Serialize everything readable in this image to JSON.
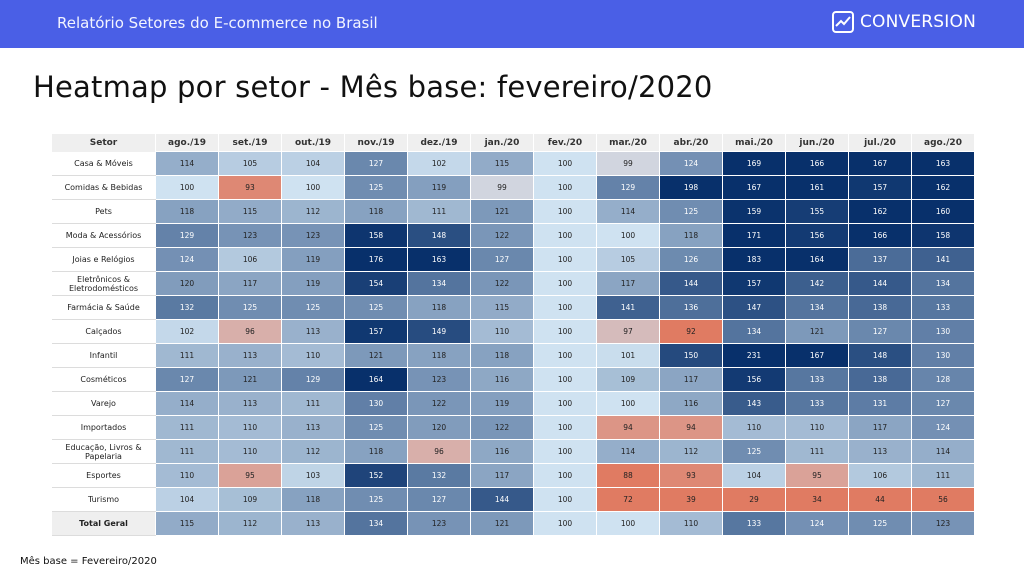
{
  "header": {
    "report_title": "Relatório Setores do E-commerce no Brasil",
    "brand_name": "CONVERSION"
  },
  "page_title": "Heatmap por setor - Mês base: fevereiro/2020",
  "footnote": "Mês base = Fevereiro/2020",
  "colors": {
    "header_bar": "#4a5fe6",
    "low": "#e07b62",
    "base": "#cfe2f1",
    "high": "#08306b"
  },
  "chart_data": {
    "type": "heatmap",
    "title": "Heatmap por setor - Mês base: fevereiro/2020",
    "row_header": "Setor",
    "columns": [
      "ago./19",
      "set./19",
      "out./19",
      "nov./19",
      "dez./19",
      "jan./20",
      "fev./20",
      "mar./20",
      "abr./20",
      "mai./20",
      "jun./20",
      "jul./20",
      "ago./20"
    ],
    "rows": [
      {
        "label": "Casa & Móveis",
        "values": [
          114,
          105,
          104,
          127,
          102,
          115,
          100,
          99,
          124,
          169,
          166,
          167,
          163
        ]
      },
      {
        "label": "Comidas & Bebidas",
        "values": [
          100,
          93,
          100,
          125,
          119,
          99,
          100,
          129,
          198,
          167,
          161,
          157,
          162
        ]
      },
      {
        "label": "Pets",
        "values": [
          118,
          115,
          112,
          118,
          111,
          121,
          100,
          114,
          125,
          159,
          155,
          162,
          160
        ]
      },
      {
        "label": "Moda & Acessórios",
        "values": [
          129,
          123,
          123,
          158,
          148,
          122,
          100,
          100,
          118,
          171,
          156,
          166,
          158
        ]
      },
      {
        "label": "Joias e Relógios",
        "values": [
          124,
          106,
          119,
          176,
          163,
          127,
          100,
          105,
          126,
          183,
          164,
          137,
          141
        ]
      },
      {
        "label": "Eletrônicos & Eletrodomésticos",
        "values": [
          120,
          117,
          119,
          154,
          134,
          122,
          100,
          117,
          144,
          157,
          142,
          144,
          134
        ]
      },
      {
        "label": "Farmácia & Saúde",
        "values": [
          132,
          125,
          125,
          125,
          118,
          115,
          100,
          141,
          136,
          147,
          134,
          138,
          133
        ]
      },
      {
        "label": "Calçados",
        "values": [
          102,
          96,
          113,
          157,
          149,
          110,
          100,
          97,
          92,
          134,
          121,
          127,
          130
        ]
      },
      {
        "label": "Infantil",
        "values": [
          111,
          113,
          110,
          121,
          118,
          118,
          100,
          101,
          150,
          231,
          167,
          148,
          130
        ]
      },
      {
        "label": "Cosméticos",
        "values": [
          127,
          121,
          129,
          164,
          123,
          116,
          100,
          109,
          117,
          156,
          133,
          138,
          128
        ]
      },
      {
        "label": "Varejo",
        "values": [
          114,
          113,
          111,
          130,
          122,
          119,
          100,
          100,
          116,
          143,
          133,
          131,
          127
        ]
      },
      {
        "label": "Importados",
        "values": [
          111,
          110,
          113,
          125,
          120,
          122,
          100,
          94,
          94,
          110,
          110,
          117,
          124
        ]
      },
      {
        "label": "Educação, Livros & Papelaria",
        "values": [
          111,
          110,
          112,
          118,
          96,
          116,
          100,
          114,
          112,
          125,
          111,
          113,
          114
        ]
      },
      {
        "label": "Esportes",
        "values": [
          110,
          95,
          103,
          152,
          132,
          117,
          100,
          88,
          93,
          104,
          95,
          106,
          111
        ]
      },
      {
        "label": "Turismo",
        "values": [
          104,
          109,
          118,
          125,
          127,
          144,
          100,
          72,
          39,
          29,
          34,
          44,
          56
        ]
      },
      {
        "label": "Total Geral",
        "values": [
          115,
          112,
          113,
          134,
          123,
          121,
          100,
          100,
          110,
          133,
          124,
          125,
          123
        ]
      }
    ]
  }
}
